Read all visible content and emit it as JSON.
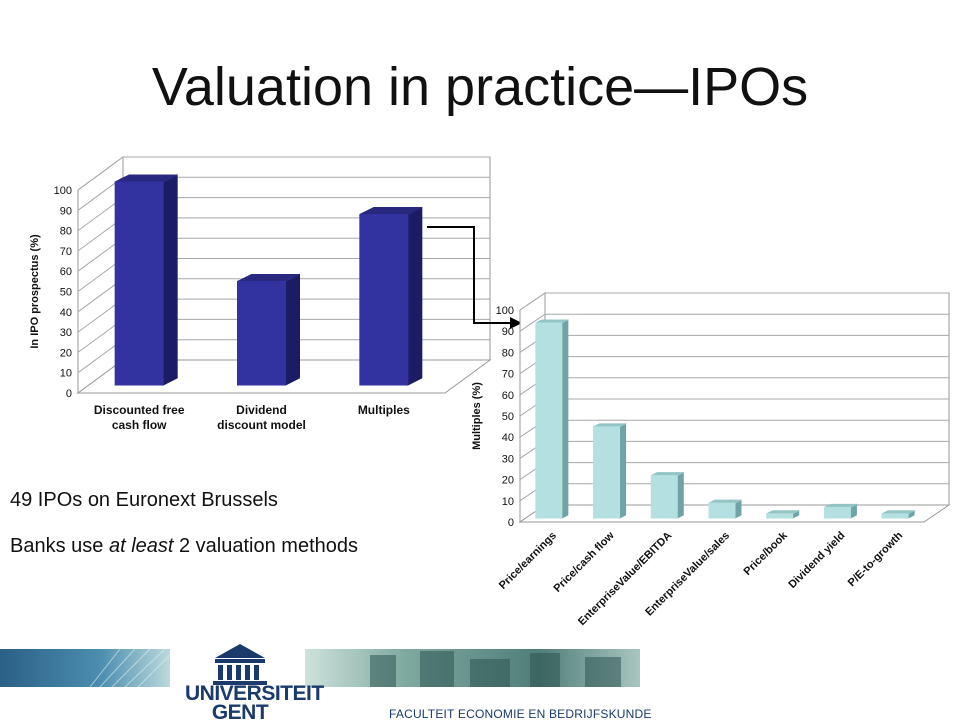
{
  "slide": {
    "title": "Valuation in practice—IPOs",
    "bullets": [
      {
        "text_before": "49 IPOs on Euronext Brussels",
        "italic": "",
        "text_after": ""
      },
      {
        "text_before": "Banks use ",
        "italic": "at least",
        "text_after": " 2 valuation methods"
      }
    ]
  },
  "footer": {
    "university_line1": "UNIVERSITEIT",
    "university_line2": "GENT",
    "faculty": "FACULTEIT ECONOMIE EN BEDRIJFSKUNDE"
  },
  "colors": {
    "left_bar_front": "#3232a0",
    "left_bar_side": "#1c1c64",
    "left_bar_top": "#28287e",
    "right_bar_front": "#b4e0e2",
    "right_bar_side": "#6fa3a6",
    "right_bar_top": "#93c4c6",
    "logo_blue": "#1a3a6c"
  },
  "chart_data": [
    {
      "type": "bar",
      "categories": [
        "Discounted free cash flow",
        "Dividend discount model",
        "Multiples"
      ],
      "category_lines": [
        [
          "Discounted free",
          "cash flow"
        ],
        [
          "Dividend",
          "discount model"
        ],
        [
          "Multiples"
        ]
      ],
      "values": [
        100,
        51,
        84
      ],
      "ylabel": "In IPO prospectus  (%)",
      "ylim": [
        0,
        100
      ],
      "yticks": [
        0,
        10,
        20,
        30,
        40,
        50,
        60,
        70,
        80,
        90,
        100
      ],
      "grid": true
    },
    {
      "type": "bar",
      "categories": [
        "Price/earnings",
        "Price/cash flow",
        "EnterpriseValue/EBITDA",
        "EnterpriseValue/sales",
        "Price/book",
        "Dividend yield",
        "P/E-to-growth"
      ],
      "values": [
        92,
        43,
        20,
        7,
        2,
        5,
        2
      ],
      "ylabel": "Multiples (%)",
      "ylim": [
        0,
        100
      ],
      "yticks": [
        0,
        10,
        20,
        30,
        40,
        50,
        60,
        70,
        80,
        90,
        100
      ],
      "grid": true
    }
  ]
}
